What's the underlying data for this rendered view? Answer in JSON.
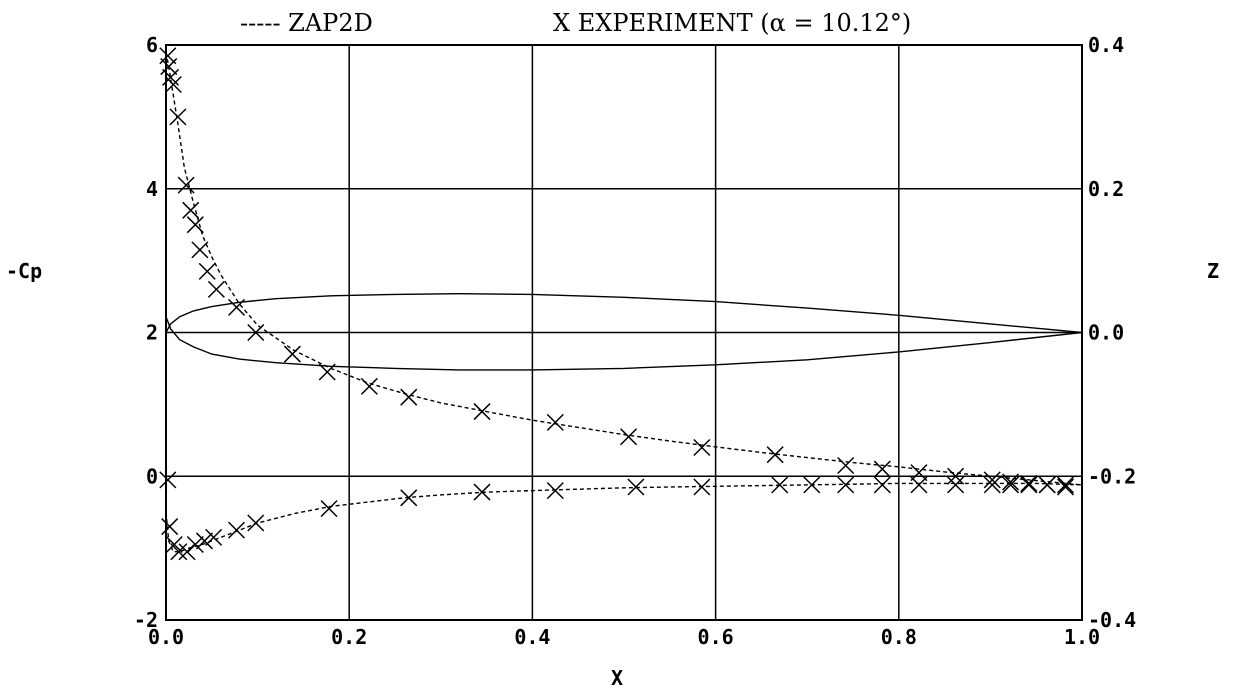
{
  "chart_data": {
    "type": "line",
    "title": "ZAP2D X EXPERIMENT (α = 10.12°)",
    "legend": {
      "line_label": "----- ZAP2D",
      "marker_label": "X EXPERIMENT (α = 10.12°)",
      "placement": "top"
    },
    "xlabel": "X",
    "ylabel": "-Cp",
    "y2label": "Z",
    "xlim": [
      0,
      1
    ],
    "ylim": [
      -2,
      6
    ],
    "y2lim": [
      -0.4,
      0.4
    ],
    "x_ticks": [
      "0.0",
      "0.2",
      "0.4",
      "0.6",
      "0.8",
      "1.0"
    ],
    "y_ticks": [
      "-2",
      "0",
      "2",
      "4",
      "6"
    ],
    "y2_ticks": [
      "-0.4",
      "-0.2",
      "0.0",
      "0.2",
      "0.4"
    ],
    "grid": true,
    "series": [
      {
        "name": "ZAP2D",
        "axis": "left",
        "style": "dashed",
        "segments": [
          {
            "x": [
              0.0,
              0.003,
              0.008,
              0.013,
              0.02,
              0.03,
              0.04,
              0.05,
              0.06,
              0.08,
              0.1,
              0.14,
              0.18,
              0.22,
              0.26,
              0.3,
              0.35,
              0.4,
              0.45,
              0.5,
              0.55,
              0.6,
              0.65,
              0.7,
              0.75,
              0.8,
              0.85,
              0.9,
              0.95,
              1.0
            ],
            "y": [
              5.9,
              5.7,
              5.3,
              4.9,
              4.3,
              3.8,
              3.35,
              3.05,
              2.8,
              2.4,
              2.1,
              1.75,
              1.5,
              1.3,
              1.15,
              1.02,
              0.9,
              0.78,
              0.68,
              0.58,
              0.49,
              0.41,
              0.33,
              0.26,
              0.19,
              0.13,
              0.06,
              0.0,
              -0.06,
              -0.12
            ]
          },
          {
            "x": [
              0.0,
              0.003,
              0.008,
              0.015,
              0.025,
              0.04,
              0.06,
              0.08,
              0.1,
              0.14,
              0.18,
              0.22,
              0.26,
              0.3,
              0.35,
              0.4,
              0.45,
              0.5,
              0.55,
              0.6,
              0.65,
              0.7,
              0.75,
              0.8,
              0.85,
              0.9,
              0.95,
              1.0
            ],
            "y": [
              -0.5,
              -0.9,
              -1.05,
              -1.05,
              -1.0,
              -0.95,
              -0.85,
              -0.75,
              -0.65,
              -0.52,
              -0.42,
              -0.36,
              -0.3,
              -0.26,
              -0.22,
              -0.2,
              -0.18,
              -0.16,
              -0.15,
              -0.14,
              -0.13,
              -0.12,
              -0.11,
              -0.1,
              -0.1,
              -0.1,
              -0.1,
              -0.12
            ]
          }
        ]
      },
      {
        "name": "EXPERIMENT",
        "axis": "left",
        "marker": "x",
        "x": [
          0.002,
          0.003,
          0.005,
          0.008,
          0.013,
          0.022,
          0.027,
          0.032,
          0.037,
          0.045,
          0.055,
          0.077,
          0.098,
          0.138,
          0.176,
          0.222,
          0.265,
          0.345,
          0.425,
          0.505,
          0.585,
          0.665,
          0.742,
          0.782,
          0.822,
          0.862,
          0.902,
          0.922,
          0.942,
          0.962,
          0.982,
          0.002,
          0.004,
          0.009,
          0.014,
          0.023,
          0.032,
          0.042,
          0.052,
          0.077,
          0.098,
          0.178,
          0.265,
          0.345,
          0.425,
          0.513,
          0.585,
          0.67,
          0.705,
          0.742,
          0.782,
          0.822,
          0.862,
          0.902,
          0.922,
          0.942,
          0.962,
          0.982
        ],
        "y": [
          5.85,
          5.7,
          5.55,
          5.45,
          5.0,
          4.05,
          3.7,
          3.5,
          3.15,
          2.85,
          2.6,
          2.35,
          2.0,
          1.7,
          1.45,
          1.25,
          1.1,
          0.9,
          0.75,
          0.55,
          0.4,
          0.3,
          0.15,
          0.1,
          0.05,
          0.0,
          -0.05,
          -0.08,
          -0.1,
          -0.12,
          -0.15,
          -0.05,
          -0.7,
          -0.95,
          -1.05,
          -1.05,
          -0.95,
          -0.9,
          -0.85,
          -0.75,
          -0.65,
          -0.45,
          -0.3,
          -0.22,
          -0.2,
          -0.15,
          -0.15,
          -0.12,
          -0.12,
          -0.12,
          -0.12,
          -0.12,
          -0.12,
          -0.12,
          -0.12,
          -0.12,
          -0.12,
          -0.12
        ]
      },
      {
        "name": "Airfoil",
        "axis": "right",
        "style": "solid",
        "segments": [
          {
            "x": [
              0.0,
              0.005,
              0.015,
              0.03,
              0.05,
              0.08,
              0.12,
              0.18,
              0.25,
              0.32,
              0.4,
              0.5,
              0.6,
              0.7,
              0.8,
              0.9,
              0.95,
              1.0
            ],
            "y": [
              0.0,
              0.012,
              0.022,
              0.03,
              0.036,
              0.042,
              0.047,
              0.051,
              0.053,
              0.054,
              0.053,
              0.049,
              0.043,
              0.034,
              0.024,
              0.012,
              0.006,
              0.0
            ]
          },
          {
            "x": [
              0.0,
              0.005,
              0.015,
              0.03,
              0.05,
              0.08,
              0.12,
              0.18,
              0.25,
              0.32,
              0.4,
              0.5,
              0.6,
              0.7,
              0.8,
              0.9,
              0.95,
              1.0
            ],
            "y": [
              0.022,
              0.005,
              -0.01,
              -0.02,
              -0.03,
              -0.037,
              -0.042,
              -0.047,
              -0.05,
              -0.052,
              -0.052,
              -0.05,
              -0.045,
              -0.038,
              -0.027,
              -0.014,
              -0.007,
              0.0
            ]
          }
        ]
      }
    ]
  }
}
